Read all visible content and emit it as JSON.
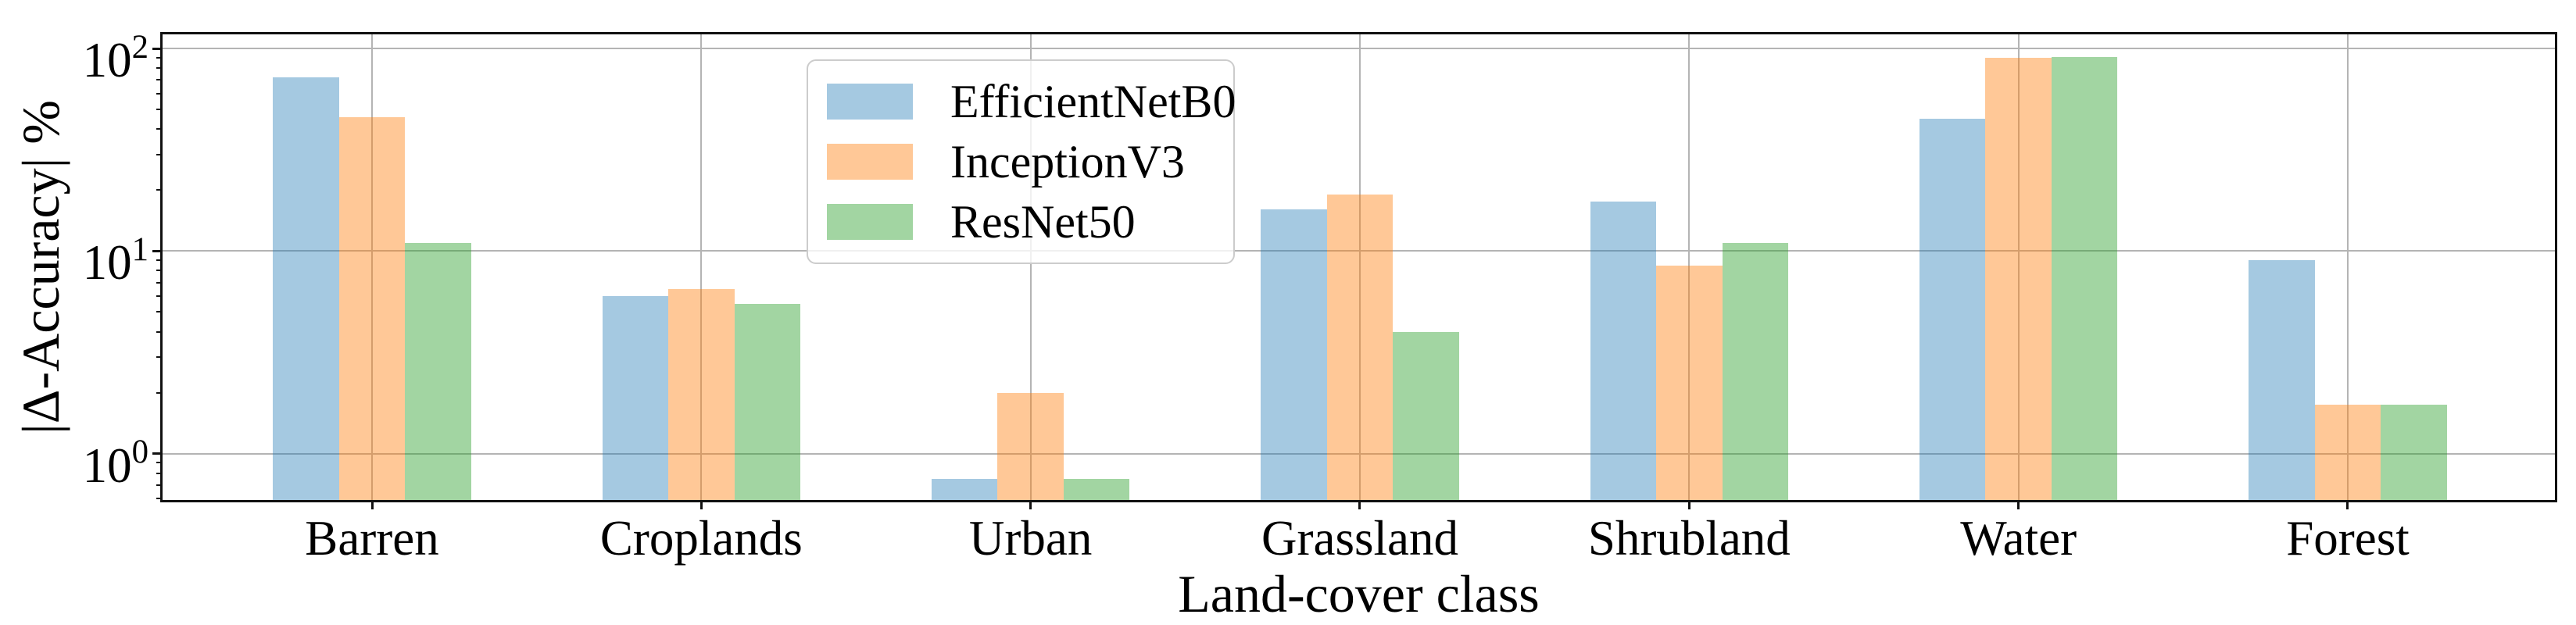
{
  "chart_data": {
    "type": "bar",
    "title": "",
    "xlabel": "Land-cover class",
    "ylabel": "|Δ-Accuracy| %",
    "yscale": "log",
    "ylim": [
      0.59,
      117.5
    ],
    "y_ticks": [
      "10^0",
      "10^1",
      "10^2"
    ],
    "grid": true,
    "legend_position": "upper center-left",
    "categories": [
      "Barren",
      "Croplands",
      "Urban",
      "Grassland",
      "Shrubland",
      "Water",
      "Forest"
    ],
    "series": [
      {
        "name": "EfficientNetB0",
        "color": "rgba(31,119,180,0.40)",
        "values": [
          72,
          6.0,
          0.75,
          16,
          17.5,
          45,
          9.0
        ]
      },
      {
        "name": "InceptionV3",
        "color": "rgba(255,127,14,0.43)",
        "values": [
          46,
          6.5,
          2.0,
          19,
          8.5,
          90,
          1.75
        ]
      },
      {
        "name": "ResNet50",
        "color": "rgba(44,160,44,0.44)",
        "values": [
          11,
          5.5,
          0.75,
          4.0,
          11,
          91,
          1.75
        ]
      }
    ],
    "colors": {
      "grid": "#b4b4b4",
      "spine": "#111111",
      "text": "#000000",
      "legend_border": "#cccccc"
    }
  }
}
